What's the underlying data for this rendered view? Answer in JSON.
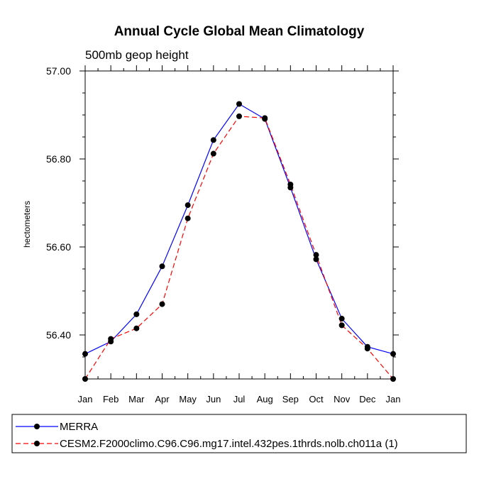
{
  "chart_data": {
    "type": "line",
    "title": "Annual Cycle Global Mean Climatology",
    "subtitle": "500mb geop height",
    "ylabel": "hectometers",
    "xlabel": "",
    "categories": [
      "Jan",
      "Feb",
      "Mar",
      "Apr",
      "May",
      "Jun",
      "Jul",
      "Aug",
      "Sep",
      "Oct",
      "Nov",
      "Dec",
      "Jan"
    ],
    "ylim": [
      56.3,
      57.0
    ],
    "yticks": [
      56.4,
      56.6,
      56.8,
      57.0
    ],
    "ytick_labels": [
      "56.40",
      "56.60",
      "56.80",
      "57.00"
    ],
    "grid": false,
    "legend_position": "bottom",
    "series": [
      {
        "name": "MERRA",
        "color": "#0000ff",
        "line_style": "solid",
        "marker": "filled-circle",
        "values": [
          56.357,
          56.385,
          56.447,
          56.556,
          56.695,
          56.843,
          56.925,
          56.891,
          56.735,
          56.572,
          56.437,
          56.373,
          56.357
        ]
      },
      {
        "name": "CESM2.F2000climo.C96.C96.mg17.intel.432pes.1thrds.nolb.ch011a (1)",
        "color": "#ff0000",
        "line_style": "dashed",
        "marker": "filled-circle",
        "values": [
          56.3,
          56.391,
          56.415,
          56.47,
          56.665,
          56.812,
          56.897,
          56.893,
          56.742,
          56.582,
          56.422,
          56.369,
          56.3
        ]
      }
    ]
  }
}
